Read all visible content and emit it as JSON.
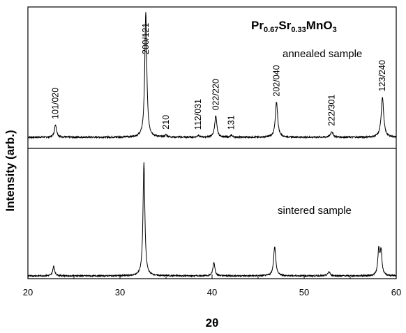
{
  "chart_data": {
    "type": "line",
    "xlabel": "2θ",
    "ylabel": "Intensity (arb.)",
    "xlim": [
      20,
      60
    ],
    "x_ticks": [
      "20",
      "30",
      "40",
      "50",
      "60"
    ],
    "y_ticks": [],
    "compound": {
      "base": [
        "Pr",
        "Sr",
        "MnO"
      ],
      "subs": [
        "0.67",
        "0.33",
        "3"
      ]
    },
    "panels": [
      {
        "label": "annealed sample",
        "baseline": 0.05,
        "peaks": [
          {
            "x": 23.0,
            "h": 0.1,
            "w": 0.14,
            "label": "101/020"
          },
          {
            "x": 32.8,
            "h": 1.0,
            "w": 0.13,
            "label": "200/121"
          },
          {
            "x": 35.0,
            "h": 0.018,
            "w": 0.12,
            "label": "210"
          },
          {
            "x": 38.5,
            "h": 0.015,
            "w": 0.12,
            "label": "112/031"
          },
          {
            "x": 40.4,
            "h": 0.17,
            "w": 0.14,
            "label": "022/220"
          },
          {
            "x": 42.1,
            "h": 0.015,
            "w": 0.12,
            "label": "131"
          },
          {
            "x": 47.0,
            "h": 0.28,
            "w": 0.15,
            "label": "202/040"
          },
          {
            "x": 53.0,
            "h": 0.045,
            "w": 0.16,
            "label": "222/301"
          },
          {
            "x": 58.5,
            "h": 0.32,
            "w": 0.16,
            "label": "123/240"
          }
        ]
      },
      {
        "label": "sintered sample",
        "baseline": 0.05,
        "peaks": [
          {
            "x": 22.8,
            "h": 0.085,
            "w": 0.13
          },
          {
            "x": 32.6,
            "h": 1.0,
            "w": 0.12
          },
          {
            "x": 40.2,
            "h": 0.12,
            "w": 0.13
          },
          {
            "x": 46.8,
            "h": 0.26,
            "w": 0.14
          },
          {
            "x": 52.7,
            "h": 0.035,
            "w": 0.15
          },
          {
            "x": 58.1,
            "h": 0.22,
            "w": 0.12
          },
          {
            "x": 58.35,
            "h": 0.21,
            "w": 0.12
          }
        ]
      }
    ]
  }
}
